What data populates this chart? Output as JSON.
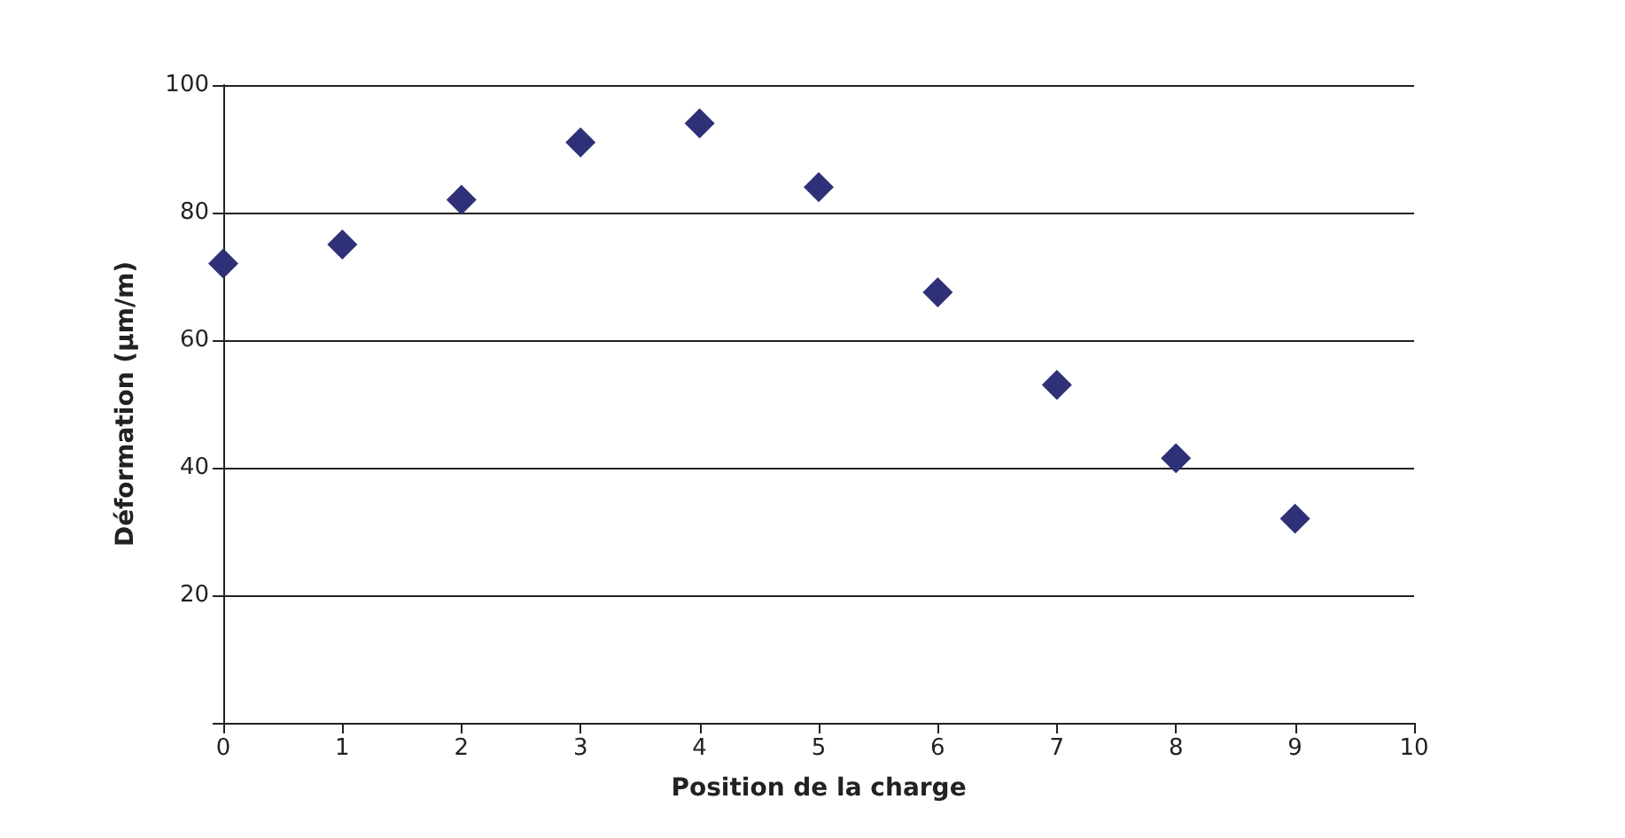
{
  "chart_data": {
    "type": "scatter",
    "xlabel": "Position de la charge",
    "ylabel": "Déformation (µm/m)",
    "x": [
      0,
      1,
      2,
      3,
      4,
      5,
      6,
      7,
      8,
      9
    ],
    "values": [
      72,
      75,
      82,
      91,
      94,
      84,
      67.5,
      53,
      41.5,
      32
    ],
    "color": "#2e3177",
    "marker": "diamond",
    "xlim": [
      0,
      10
    ],
    "xticks": [
      0,
      1,
      2,
      3,
      4,
      5,
      6,
      7,
      8,
      9,
      10
    ],
    "ylim": [
      0,
      100
    ],
    "yticks": [
      {
        "value": 0,
        "label": null
      },
      20,
      40,
      60,
      80,
      100
    ],
    "grid": "y"
  }
}
